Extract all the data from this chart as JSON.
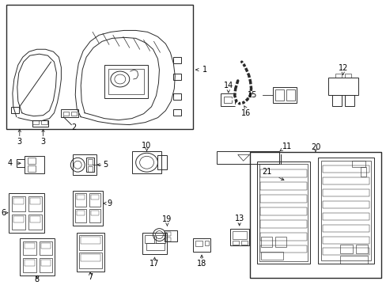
{
  "bg_color": "#ffffff",
  "line_color": "#2a2a2a",
  "lw": 0.7,
  "fig_w": 4.89,
  "fig_h": 3.6,
  "dpi": 100
}
